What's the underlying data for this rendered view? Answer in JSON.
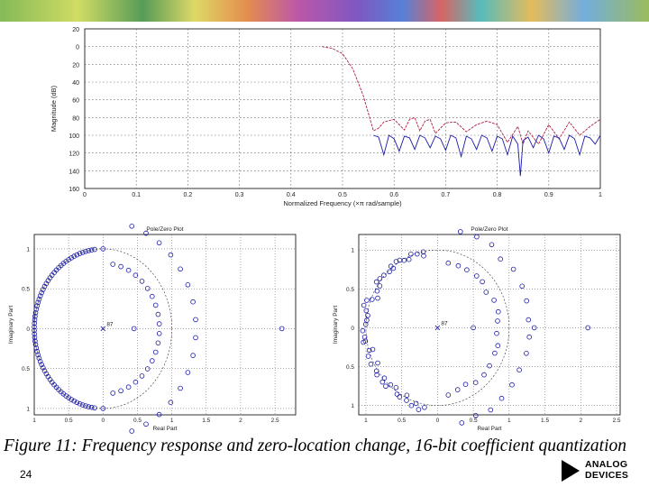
{
  "page_number": "24",
  "caption": "Figure 11: Frequency response and zero-location change, 16-bit coefficient quantization",
  "logo": {
    "line1": "ANALOG",
    "line2": "DEVICES"
  },
  "colors": {
    "blue": "#1a1aa8",
    "red": "#b02040",
    "grid": "#555555"
  },
  "chart_data": [
    {
      "type": "line",
      "xlabel": "Normalized Frequency (×π rad/sample)",
      "ylabel": "Magnitude (dB)",
      "xlim": [
        0,
        1
      ],
      "ylim": [
        -160,
        20
      ],
      "xticks": [
        0,
        0.1,
        0.2,
        0.3,
        0.4,
        0.5,
        0.6,
        0.7,
        0.8,
        0.9,
        1
      ],
      "xtick_labels": [
        "0",
        "0.1",
        "0.2",
        "0.3",
        "0.4",
        "0.5",
        "0.6",
        "0.7",
        "0.8",
        "0.9",
        "1"
      ],
      "yticks": [
        20,
        0,
        -20,
        -40,
        -60,
        -80,
        -100,
        -120,
        -140,
        -160
      ],
      "ytick_labels": [
        "20",
        "0",
        "20",
        "40",
        "60",
        "80",
        "100",
        "120",
        "140",
        "160"
      ],
      "grid": true,
      "series": [
        {
          "color": "red",
          "x": [
            0.46,
            0.48,
            0.5,
            0.52,
            0.54,
            0.55,
            0.56,
            0.57,
            0.58,
            0.6,
            0.62,
            0.63,
            0.64,
            0.65,
            0.66,
            0.67,
            0.68,
            0.7,
            0.72,
            0.74,
            0.76,
            0.78,
            0.8,
            0.82,
            0.84,
            0.85,
            0.86,
            0.88,
            0.9,
            0.92,
            0.94,
            0.96,
            0.98,
            1.0
          ],
          "y": [
            0,
            -2,
            -8,
            -25,
            -55,
            -75,
            -95,
            -92,
            -85,
            -82,
            -94,
            -82,
            -80,
            -95,
            -84,
            -82,
            -98,
            -86,
            -85,
            -96,
            -88,
            -84,
            -88,
            -108,
            -90,
            -110,
            -95,
            -110,
            -88,
            -104,
            -85,
            -100,
            -90,
            -82
          ]
        },
        {
          "color": "blue",
          "x": [
            0.56,
            0.57,
            0.58,
            0.59,
            0.6,
            0.61,
            0.62,
            0.63,
            0.64,
            0.65,
            0.66,
            0.67,
            0.68,
            0.69,
            0.7,
            0.71,
            0.72,
            0.73,
            0.74,
            0.75,
            0.76,
            0.77,
            0.78,
            0.79,
            0.8,
            0.81,
            0.82,
            0.83,
            0.84,
            0.845,
            0.85,
            0.86,
            0.87,
            0.88,
            0.89,
            0.9,
            0.91,
            0.92,
            0.93,
            0.94,
            0.95,
            0.96,
            0.97,
            0.98,
            0.99,
            1.0
          ],
          "y": [
            -100,
            -102,
            -122,
            -100,
            -104,
            -118,
            -101,
            -103,
            -116,
            -100,
            -103,
            -114,
            -101,
            -104,
            -117,
            -100,
            -103,
            -124,
            -101,
            -104,
            -116,
            -100,
            -103,
            -118,
            -101,
            -104,
            -122,
            -101,
            -110,
            -146,
            -106,
            -102,
            -114,
            -100,
            -104,
            -120,
            -101,
            -103,
            -116,
            -100,
            -104,
            -122,
            -101,
            -103,
            -110,
            -100
          ]
        }
      ]
    },
    {
      "type": "scatter",
      "title": "Pole/Zero Plot",
      "xlabel": "Real Part",
      "ylabel": "Imaginary Part",
      "xlim": [
        -1,
        2.8
      ],
      "ylim": [
        -1.08,
        1.18
      ],
      "xticks": [
        -1,
        -0.5,
        0,
        0.5,
        1,
        1.5,
        2,
        2.5
      ],
      "xtick_labels": [
        "1",
        "0.5",
        "0",
        "0.5",
        "1",
        "1.5",
        "2",
        "2.5"
      ],
      "yticks": [
        1,
        0.5,
        0,
        -0.5,
        -1
      ],
      "ytick_labels": [
        "1",
        "0.5",
        "0",
        "0.5",
        "1"
      ],
      "pole_label": "87",
      "unit_circle": true,
      "zero_groups": [
        {
          "kind": "arc",
          "center": [
            0,
            0
          ],
          "radius": 1.0,
          "from_deg": 97,
          "to_deg": 263,
          "count": 66
        },
        {
          "kind": "arc",
          "center": [
            0,
            0
          ],
          "radius": 0.82,
          "from_deg": -80,
          "to_deg": 80,
          "count": 20
        },
        {
          "kind": "arc",
          "center": [
            0,
            0
          ],
          "radius": 1.35,
          "from_deg": -72,
          "to_deg": 72,
          "count": 16
        },
        {
          "kind": "points",
          "points": [
            [
              0.0,
              1.0
            ],
            [
              0.0,
              -1.0
            ],
            [
              2.6,
              0.0
            ],
            [
              0.45,
              0.0
            ]
          ]
        }
      ]
    },
    {
      "type": "scatter",
      "title": "Pole/Zero Plot",
      "xlabel": "Real Part",
      "ylabel": "Imaginary Part",
      "xlim": [
        -1.1,
        2.55
      ],
      "ylim": [
        -1.12,
        1.2
      ],
      "xticks": [
        -1,
        -0.5,
        0,
        0.5,
        1,
        1.5,
        2,
        2.5
      ],
      "xtick_labels": [
        "1",
        "0.5",
        "0",
        "0.5",
        "1",
        "1.5",
        "2",
        "2.5"
      ],
      "yticks": [
        1,
        0.5,
        0,
        -0.5,
        -1
      ],
      "ytick_labels": [
        "1",
        "0.5",
        "0",
        "0.5",
        "1"
      ],
      "pole_label": "87",
      "unit_circle": true,
      "zero_groups": [
        {
          "kind": "arc",
          "center": [
            0,
            0
          ],
          "radius": 1.0,
          "from_deg": 100,
          "to_deg": 260,
          "count": 48,
          "jitter": 0.06
        },
        {
          "kind": "arc",
          "center": [
            0,
            0
          ],
          "radius": 0.85,
          "from_deg": -80,
          "to_deg": 80,
          "count": 18,
          "jitter": 0.04
        },
        {
          "kind": "arc",
          "center": [
            0,
            0
          ],
          "radius": 1.28,
          "from_deg": -75,
          "to_deg": 75,
          "count": 16,
          "jitter": 0.03
        },
        {
          "kind": "points",
          "points": [
            [
              2.1,
              0.0
            ],
            [
              1.35,
              0.0
            ],
            [
              0.5,
              0.0
            ]
          ]
        }
      ]
    }
  ]
}
